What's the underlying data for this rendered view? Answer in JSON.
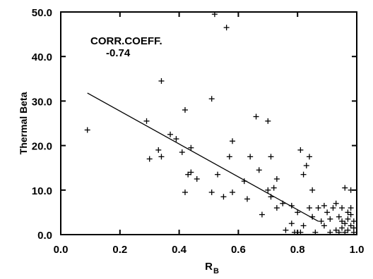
{
  "chart_data": {
    "type": "scatter",
    "title": "",
    "xlabel": "R",
    "xlabel_subscript": "B",
    "ylabel": "Thermal Beta",
    "xlim": [
      0.0,
      1.0
    ],
    "ylim": [
      0.0,
      50.0
    ],
    "xticks": [
      "0.0",
      "0.2",
      "0.4",
      "0.6",
      "0.8",
      "1.0"
    ],
    "xtick_values": [
      0.0,
      0.2,
      0.4,
      0.6,
      0.8,
      1.0
    ],
    "yticks": [
      "0.0",
      "10.0",
      "20.0",
      "30.0",
      "40.0",
      "50.0"
    ],
    "ytick_values": [
      0.0,
      10.0,
      20.0,
      30.0,
      40.0,
      50.0
    ],
    "grid": false,
    "marker": "+",
    "annotation": {
      "line1": "CORR.COEFF.",
      "line2": "-0.74"
    },
    "fit_line": {
      "x": [
        0.09,
        0.87
      ],
      "y": [
        31.8,
        3.0
      ]
    },
    "points": [
      [
        0.09,
        23.5
      ],
      [
        0.29,
        25.5
      ],
      [
        0.3,
        17.0
      ],
      [
        0.33,
        19.0
      ],
      [
        0.34,
        17.5
      ],
      [
        0.34,
        34.5
      ],
      [
        0.37,
        22.5
      ],
      [
        0.39,
        21.5
      ],
      [
        0.41,
        18.5
      ],
      [
        0.42,
        28.0
      ],
      [
        0.42,
        9.5
      ],
      [
        0.43,
        13.5
      ],
      [
        0.44,
        19.5
      ],
      [
        0.44,
        14.0
      ],
      [
        0.46,
        12.5
      ],
      [
        0.51,
        30.5
      ],
      [
        0.51,
        9.5
      ],
      [
        0.52,
        49.5
      ],
      [
        0.53,
        13.5
      ],
      [
        0.55,
        8.5
      ],
      [
        0.56,
        46.5
      ],
      [
        0.57,
        17.5
      ],
      [
        0.58,
        9.5
      ],
      [
        0.58,
        21.0
      ],
      [
        0.62,
        12.0
      ],
      [
        0.63,
        8.0
      ],
      [
        0.64,
        17.5
      ],
      [
        0.66,
        26.5
      ],
      [
        0.67,
        14.5
      ],
      [
        0.68,
        4.5
      ],
      [
        0.7,
        10.0
      ],
      [
        0.7,
        25.5
      ],
      [
        0.71,
        8.5
      ],
      [
        0.71,
        17.5
      ],
      [
        0.72,
        10.5
      ],
      [
        0.73,
        6.0
      ],
      [
        0.73,
        12.5
      ],
      [
        0.75,
        7.0
      ],
      [
        0.76,
        1.0
      ],
      [
        0.78,
        6.5
      ],
      [
        0.78,
        2.5
      ],
      [
        0.79,
        0.5
      ],
      [
        0.8,
        5.0
      ],
      [
        0.81,
        19.0
      ],
      [
        0.81,
        0.5
      ],
      [
        0.82,
        13.5
      ],
      [
        0.82,
        2.0
      ],
      [
        0.83,
        15.5
      ],
      [
        0.84,
        17.5
      ],
      [
        0.84,
        6.0
      ],
      [
        0.85,
        10.0
      ],
      [
        0.85,
        4.0
      ],
      [
        0.86,
        0.5
      ],
      [
        0.87,
        6.0
      ],
      [
        0.88,
        3.0
      ],
      [
        0.89,
        2.0
      ],
      [
        0.89,
        6.5
      ],
      [
        0.9,
        5.0
      ],
      [
        0.91,
        0.5
      ],
      [
        0.91,
        3.5
      ],
      [
        0.92,
        6.0
      ],
      [
        0.93,
        7.0
      ],
      [
        0.93,
        1.0
      ],
      [
        0.94,
        4.0
      ],
      [
        0.94,
        0.5
      ],
      [
        0.95,
        6.0
      ],
      [
        0.95,
        3.0
      ],
      [
        0.95,
        1.5
      ],
      [
        0.96,
        2.5
      ],
      [
        0.96,
        10.5
      ],
      [
        0.96,
        0.5
      ],
      [
        0.97,
        5.0
      ],
      [
        0.97,
        3.5
      ],
      [
        0.97,
        1.0
      ],
      [
        0.98,
        2.0
      ],
      [
        0.98,
        4.5
      ],
      [
        0.98,
        6.0
      ],
      [
        0.98,
        10.0
      ],
      [
        0.99,
        1.5
      ],
      [
        0.99,
        0.5
      ],
      [
        0.99,
        3.0
      ]
    ]
  }
}
